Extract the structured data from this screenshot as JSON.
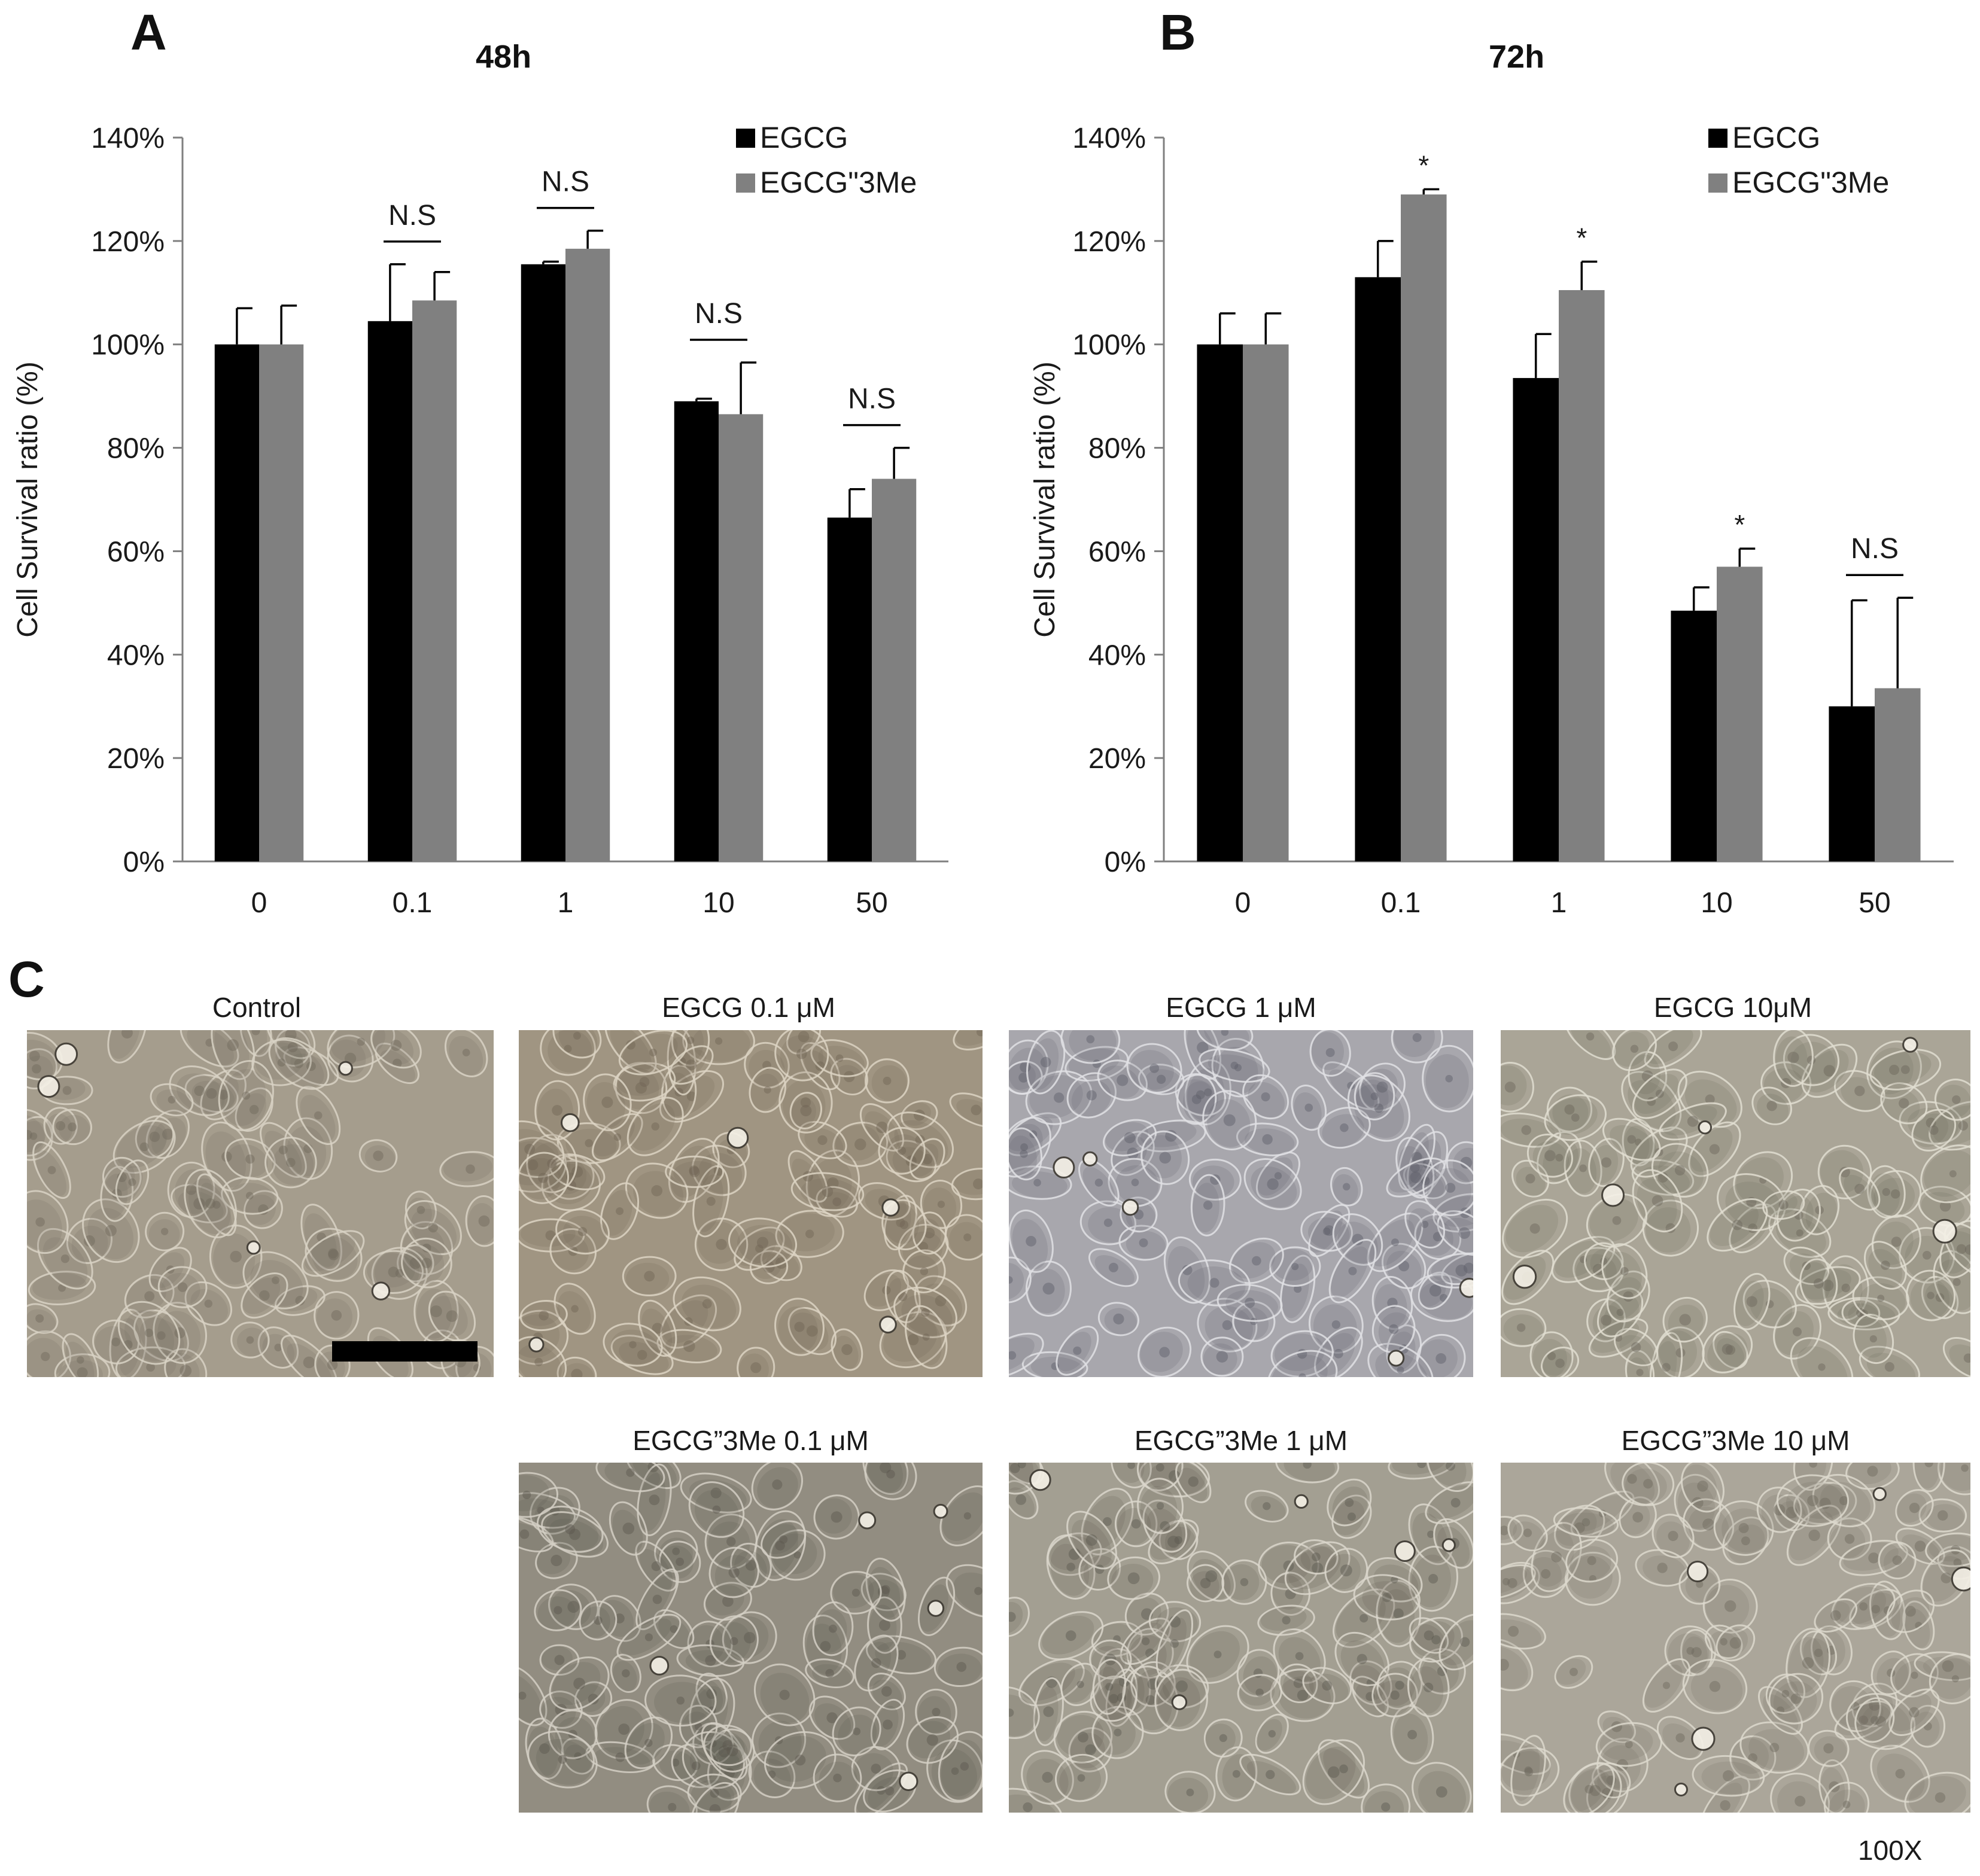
{
  "panel_letters": {
    "a": "A",
    "b": "B",
    "c": "C"
  },
  "chart_data": [
    {
      "type": "bar",
      "title": "48h",
      "ylabel": "Cell  Survival ratio (%)",
      "xlabel": "",
      "categories": [
        "0",
        "0.1",
        "1",
        "10",
        "50"
      ],
      "ylim": [
        0,
        140
      ],
      "yticks": [
        "0%",
        "20%",
        "40%",
        "60%",
        "80%",
        "100%",
        "120%",
        "140%"
      ],
      "series": [
        {
          "name": "EGCG",
          "color": "#000000",
          "values": [
            100,
            104.5,
            115.5,
            89,
            66.5
          ],
          "errors": [
            7,
            11,
            0.5,
            0.5,
            5.5
          ]
        },
        {
          "name": "EGCG\"3Me",
          "color": "#808080",
          "values": [
            100,
            108.5,
            118.5,
            86.5,
            74
          ],
          "errors": [
            7.5,
            5.5,
            3.5,
            10,
            6
          ]
        }
      ],
      "annotations": [
        "",
        "N.S",
        "N.S",
        "N.S",
        "N.S"
      ],
      "legend": "top-right",
      "grid": false
    },
    {
      "type": "bar",
      "title": "72h",
      "ylabel": "Cell  Survival ratio (%)",
      "xlabel": "",
      "categories": [
        "0",
        "0.1",
        "1",
        "10",
        "50"
      ],
      "ylim": [
        0,
        140
      ],
      "yticks": [
        "0%",
        "20%",
        "40%",
        "60%",
        "80%",
        "100%",
        "120%",
        "140%"
      ],
      "series": [
        {
          "name": "EGCG",
          "color": "#000000",
          "values": [
            100,
            113,
            93.5,
            48.5,
            30
          ],
          "errors": [
            6,
            7,
            8.5,
            4.5,
            20.5
          ]
        },
        {
          "name": "EGCG\"3Me",
          "color": "#808080",
          "values": [
            100,
            129,
            110.5,
            57,
            33.5
          ],
          "errors": [
            6,
            1,
            5.5,
            3.5,
            17.5
          ]
        }
      ],
      "annotations": [
        "",
        "*",
        "*",
        "*",
        "N.S"
      ],
      "legend": "top-right",
      "grid": false
    }
  ],
  "micrographs": {
    "row1": [
      "Control",
      "EGCG 0.1 μM",
      "EGCG 1 μM",
      "EGCG 10μM"
    ],
    "row2": [
      "EGCG”3Me 0.1 μM",
      "EGCG”3Me 1 μM",
      "EGCG”3Me 10 μM"
    ]
  },
  "magnification": "100X"
}
